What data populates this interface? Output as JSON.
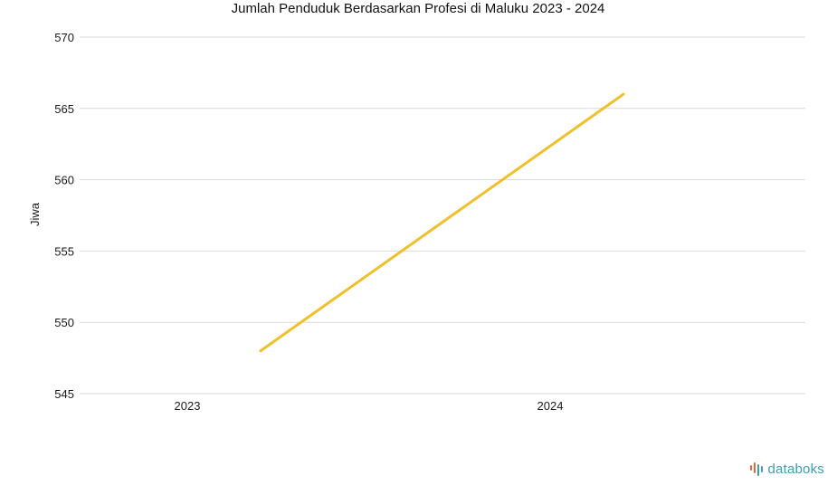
{
  "chart_data": {
    "type": "line",
    "title": "Jumlah Penduduk Berdasarkan Profesi di Maluku 2023 - 2024",
    "xlabel": "",
    "ylabel": "Jiwa",
    "categories": [
      "2023",
      "2024"
    ],
    "series": [
      {
        "values": [
          548,
          566
        ],
        "color": "#f0c02b"
      }
    ],
    "yticks": [
      "545",
      "550",
      "555",
      "560",
      "565",
      "570"
    ],
    "ylim": [
      545,
      570
    ],
    "grid": true,
    "legend": "none"
  },
  "branding": {
    "logo_text": "databoks",
    "logo_color": "#3a9fb0",
    "mark_colors": [
      "#e8673a",
      "#3a9fb0"
    ]
  }
}
